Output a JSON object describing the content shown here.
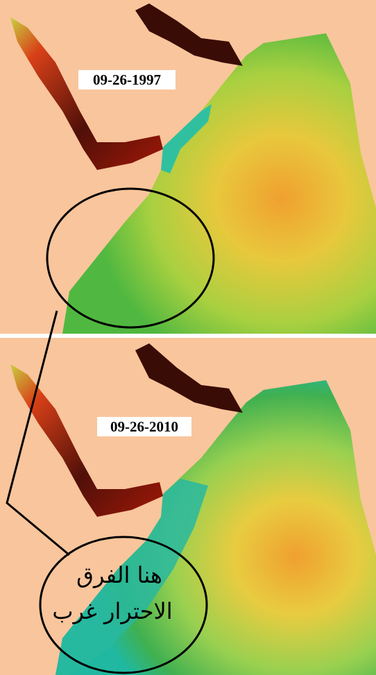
{
  "panels": [
    {
      "date": "09-26-1997"
    },
    {
      "date": "09-26-2010"
    }
  ],
  "annotation": {
    "lines": [
      "هنا الفرق",
      "الاحترار غرب"
    ]
  }
}
